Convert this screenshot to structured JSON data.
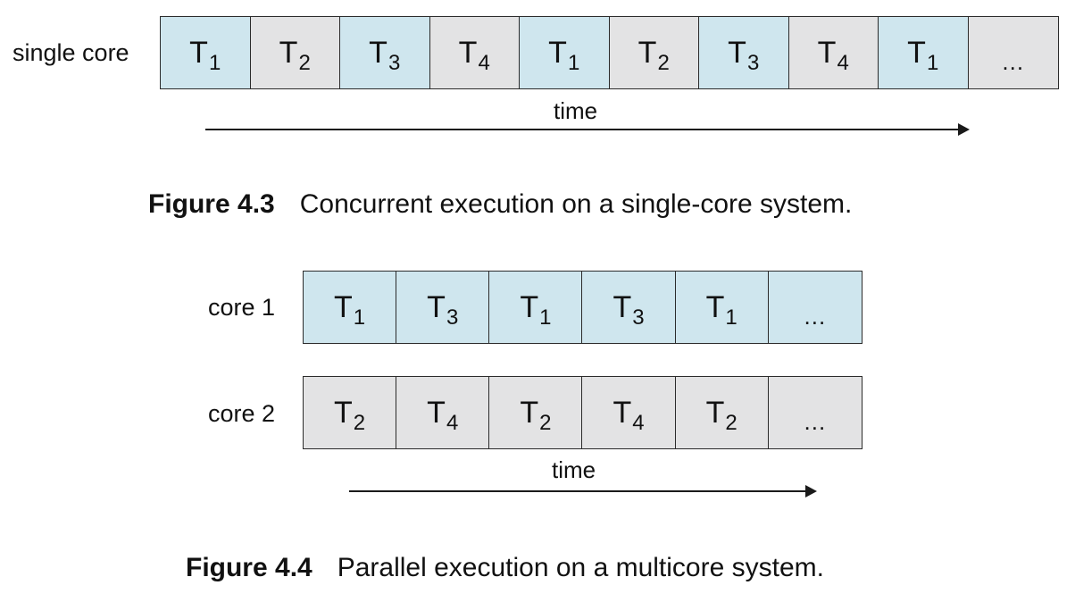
{
  "figure_4_3": {
    "row_label": "single core",
    "cells": [
      {
        "name": "T",
        "sub": "1",
        "color": "blue"
      },
      {
        "name": "T",
        "sub": "2",
        "color": "gray"
      },
      {
        "name": "T",
        "sub": "3",
        "color": "blue"
      },
      {
        "name": "T",
        "sub": "4",
        "color": "gray"
      },
      {
        "name": "T",
        "sub": "1",
        "color": "blue"
      },
      {
        "name": "T",
        "sub": "2",
        "color": "gray"
      },
      {
        "name": "T",
        "sub": "3",
        "color": "blue"
      },
      {
        "name": "T",
        "sub": "4",
        "color": "gray"
      },
      {
        "name": "T",
        "sub": "1",
        "color": "blue"
      },
      {
        "name": "...",
        "sub": "",
        "color": "gray"
      }
    ],
    "time_label": "time",
    "caption_number": "Figure 4.3",
    "caption_text": "Concurrent execution on a single-core system."
  },
  "figure_4_4": {
    "core1_label": "core 1",
    "core1_cells": [
      {
        "name": "T",
        "sub": "1",
        "color": "blue"
      },
      {
        "name": "T",
        "sub": "3",
        "color": "blue"
      },
      {
        "name": "T",
        "sub": "1",
        "color": "blue"
      },
      {
        "name": "T",
        "sub": "3",
        "color": "blue"
      },
      {
        "name": "T",
        "sub": "1",
        "color": "blue"
      },
      {
        "name": "...",
        "sub": "",
        "color": "blue"
      }
    ],
    "core2_label": "core 2",
    "core2_cells": [
      {
        "name": "T",
        "sub": "2",
        "color": "gray"
      },
      {
        "name": "T",
        "sub": "4",
        "color": "gray"
      },
      {
        "name": "T",
        "sub": "2",
        "color": "gray"
      },
      {
        "name": "T",
        "sub": "4",
        "color": "gray"
      },
      {
        "name": "T",
        "sub": "2",
        "color": "gray"
      },
      {
        "name": "...",
        "sub": "",
        "color": "gray"
      }
    ],
    "time_label": "time",
    "caption_number": "Figure 4.4",
    "caption_text": "Parallel execution on a multicore system."
  },
  "colors": {
    "blue_cell": "#cfe6ee",
    "gray_cell": "#e3e3e4",
    "border": "#2b2b2b"
  }
}
